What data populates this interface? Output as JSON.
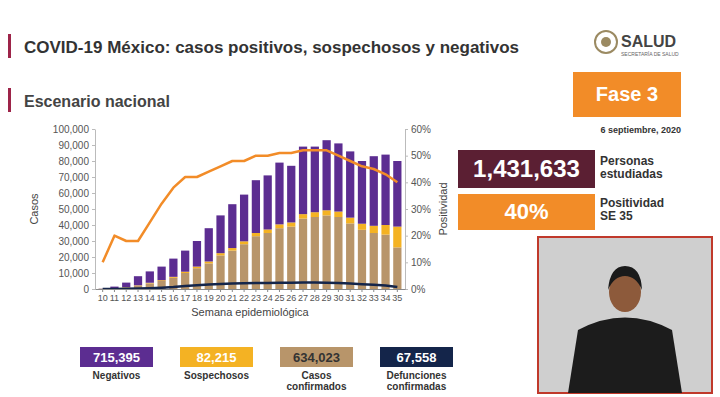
{
  "chart_data": {
    "type": "bar",
    "title": "COVID-19 México: casos positivos, sospechosos y negativos",
    "subtitle": "Escenario nacional",
    "x_label": "Semana epidemiológica",
    "y_label": "Casos",
    "y2_label": "Positividad",
    "categories": [
      10,
      11,
      12,
      13,
      14,
      15,
      16,
      17,
      18,
      19,
      20,
      21,
      22,
      23,
      24,
      25,
      26,
      27,
      28,
      29,
      30,
      31,
      32,
      33,
      34,
      35
    ],
    "series": [
      {
        "name": "Negativos",
        "type": "bar",
        "color": "#5c2d91",
        "total": "715,395",
        "values": [
          100,
          900,
          2800,
          5700,
          7100,
          8500,
          11400,
          13200,
          16000,
          20800,
          23600,
          27400,
          29200,
          33000,
          33800,
          38600,
          35400,
          42200,
          41000,
          43800,
          42600,
          41400,
          39200,
          43500,
          44000,
          41000
        ]
      },
      {
        "name": "Sospechosos",
        "type": "bar",
        "color": "#f4b223",
        "total": "82,215",
        "values": [
          0,
          100,
          200,
          300,
          400,
          500,
          600,
          800,
          1000,
          1200,
          1400,
          1600,
          1800,
          2000,
          2200,
          2400,
          2600,
          2800,
          3000,
          3200,
          3400,
          3600,
          3800,
          4500,
          6000,
          13000
        ]
      },
      {
        "name": "Casos confirmados",
        "type": "bar",
        "color": "#b8956a",
        "total": "634,023",
        "values": [
          200,
          500,
          1000,
          2000,
          3500,
          5000,
          7000,
          10000,
          13000,
          16000,
          21000,
          24000,
          28000,
          33000,
          35000,
          38000,
          39000,
          44000,
          45000,
          46000,
          45000,
          41000,
          37000,
          35000,
          34000,
          26000
        ]
      },
      {
        "name": "Defunciones confirmadas",
        "type": "line",
        "color": "#14254a",
        "total": "67,558",
        "values": [
          0,
          0,
          100,
          300,
          500,
          800,
          1200,
          1800,
          2300,
          2800,
          3200,
          3500,
          3600,
          3700,
          3800,
          3900,
          3900,
          4000,
          4000,
          3900,
          3700,
          3400,
          3000,
          2600,
          2200,
          1300
        ]
      },
      {
        "type": "line",
        "axis": "y2",
        "color": "#f28c28",
        "values": [
          10,
          20,
          18,
          18,
          25,
          32,
          38,
          42,
          42,
          44,
          46,
          48,
          48,
          50,
          50,
          51,
          51,
          52,
          52,
          52,
          50,
          48,
          46,
          45,
          43,
          40
        ]
      }
    ],
    "stacked": true,
    "grid": false,
    "legend": "bottom",
    "ylim": [
      0,
      100000
    ],
    "yticks": [
      0,
      {
        "value": 10000,
        "label": "10,000"
      },
      {
        "value": 20000,
        "label": "20,000"
      },
      {
        "value": 30000,
        "label": "30,000"
      },
      {
        "value": 40000,
        "label": "40,000"
      },
      {
        "value": 50000,
        "label": "50,000"
      },
      {
        "value": 60000,
        "label": "60,000"
      },
      {
        "value": 70000,
        "label": "70,000"
      },
      {
        "value": 80000,
        "label": "80,000"
      },
      {
        "value": 90000,
        "label": "90,000"
      },
      {
        "value": 100000,
        "label": "100,000"
      }
    ],
    "y2lim": [
      0,
      60
    ],
    "y2ticks": [
      {
        "value": 0,
        "label": "0%"
      },
      {
        "value": 10,
        "label": "10%"
      },
      {
        "value": 20,
        "label": "20%"
      },
      {
        "value": 30,
        "label": "30%"
      },
      {
        "value": 40,
        "label": "40%"
      },
      {
        "value": 50,
        "label": "50%"
      },
      {
        "value": 60,
        "label": "60%"
      }
    ]
  },
  "header": {
    "logo": "SALUD",
    "logo_sub": "SECRETARÍA DE SALUD"
  },
  "panel": {
    "phase": "Fase 3",
    "date": "6 septiembre, 2020",
    "studied": "1,431,633",
    "studied_label": "Personas estudiadas",
    "positivity": "40%",
    "positivity_label": "Positividad SE 35"
  }
}
